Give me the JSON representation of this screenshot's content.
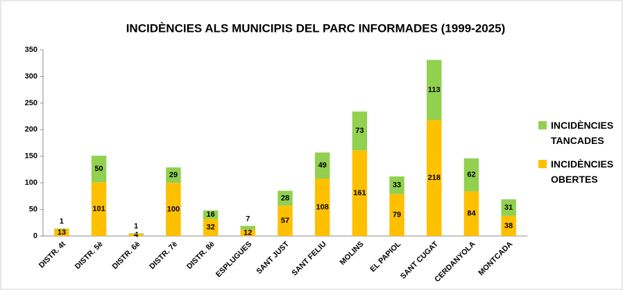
{
  "chart_data": {
    "type": "stacked_bar",
    "title": "INCIDÈNCIES ALS MUNICIPIS DEL PARC INFORMADES (1999-2025)",
    "categories": [
      "DISTR. 4t",
      "DISTR. 5è",
      "DISTR. 6è",
      "DISTR. 7è",
      "DISTR. 8è",
      "ESPLUGUES",
      "SANT JUST",
      "SANT FELIU",
      "MOLINS",
      "EL PAPIOL",
      "SANT CUGAT",
      "CERDANYOLA",
      "MONTCADA"
    ],
    "series": [
      {
        "name": "INCIDÈNCIES OBERTES",
        "color": "#ffc000",
        "values": [
          13,
          101,
          4,
          100,
          32,
          12,
          57,
          108,
          161,
          79,
          218,
          84,
          38
        ]
      },
      {
        "name": "INCIDÈNCIES TANCADES",
        "color": "#92d050",
        "values": [
          1,
          50,
          1,
          29,
          16,
          7,
          28,
          49,
          73,
          33,
          113,
          62,
          31
        ]
      }
    ],
    "ylim": [
      0,
      350
    ],
    "yticks": [
      0,
      50,
      100,
      150,
      200,
      250,
      300,
      350
    ],
    "legend": "right",
    "grid": false
  }
}
